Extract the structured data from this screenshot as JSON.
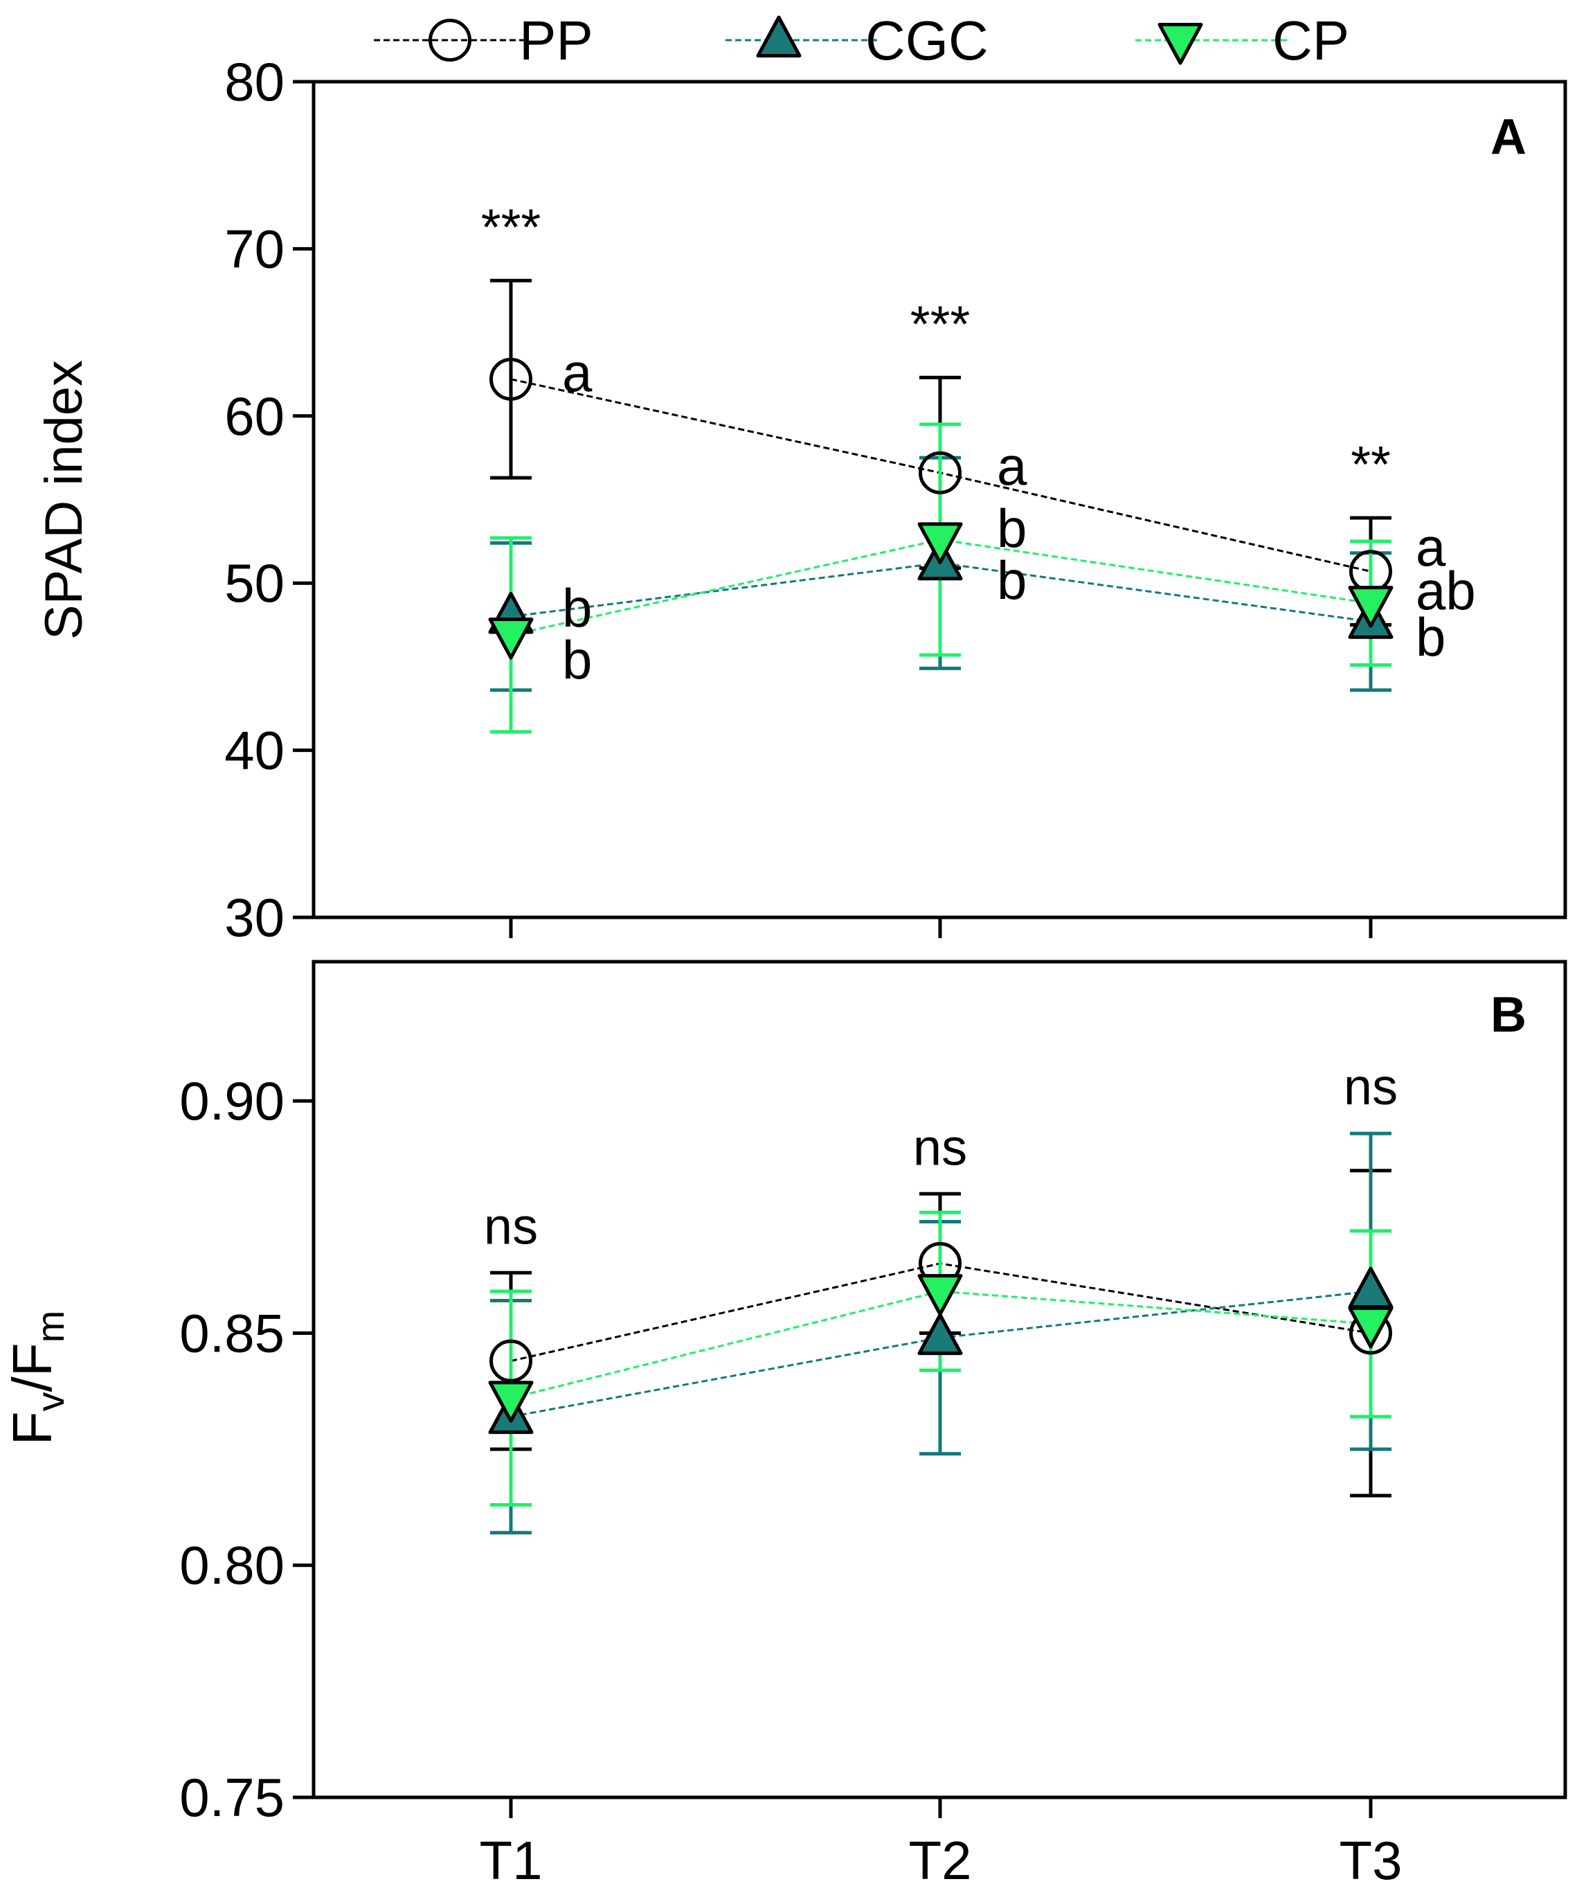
{
  "legend": [
    {
      "name": "PP",
      "marker": "circle"
    },
    {
      "name": "CGC",
      "marker": "triangle-up"
    },
    {
      "name": "CP",
      "marker": "triangle-down"
    }
  ],
  "colors": {
    "PP": "#000000",
    "CGC": "#127a78",
    "CP": "#1ef06a",
    "CGC_fill": "#1a7a78",
    "CP_fill": "#24f060",
    "axes": "#000000"
  },
  "chart_data": [
    {
      "type": "line",
      "panel_label": "A",
      "ylabel": "SPAD index",
      "ylim": [
        30,
        80
      ],
      "yticks": [
        "30",
        "40",
        "50",
        "60",
        "70",
        "80"
      ],
      "categories": [
        "T1",
        "T2",
        "T3"
      ],
      "grid": false,
      "legend_position": "top",
      "series": [
        {
          "name": "PP",
          "values": [
            62.2,
            56.6,
            50.7
          ],
          "error": [
            5.9,
            5.7,
            3.2
          ]
        },
        {
          "name": "CGC",
          "values": [
            48.0,
            51.2,
            47.7
          ],
          "error": [
            4.4,
            6.3,
            4.1
          ]
        },
        {
          "name": "CP",
          "values": [
            46.9,
            52.6,
            48.8
          ],
          "error": [
            5.8,
            6.9,
            3.7
          ]
        }
      ],
      "significance": [
        "***",
        "***",
        "**"
      ],
      "letters": {
        "PP": [
          "a",
          "a",
          "a"
        ],
        "CGC": [
          "b",
          "b",
          "b"
        ],
        "CP": [
          "b",
          "b",
          "ab"
        ]
      }
    },
    {
      "type": "line",
      "panel_label": "B",
      "ylabel": "Fv/Fm",
      "ylabel_main": "F",
      "ylabel_sub1": "v",
      "ylabel_mid": "/F",
      "ylabel_sub2": "m",
      "ylim": [
        0.75,
        0.93
      ],
      "yticks": [
        "0.75",
        "0.80",
        "0.85",
        "0.90"
      ],
      "categories": [
        "T1",
        "T2",
        "T3"
      ],
      "xtick_labels": [
        "T1",
        "T2",
        "T3"
      ],
      "grid": false,
      "series": [
        {
          "name": "PP",
          "values": [
            0.844,
            0.865,
            0.85
          ],
          "error": [
            0.019,
            0.015,
            0.035
          ]
        },
        {
          "name": "CGC",
          "values": [
            0.832,
            0.849,
            0.859
          ],
          "error": [
            0.025,
            0.025,
            0.034
          ]
        },
        {
          "name": "CP",
          "values": [
            0.836,
            0.859,
            0.852
          ],
          "error": [
            0.023,
            0.017,
            0.02
          ]
        }
      ],
      "significance": [
        "ns",
        "ns",
        "ns"
      ]
    }
  ]
}
